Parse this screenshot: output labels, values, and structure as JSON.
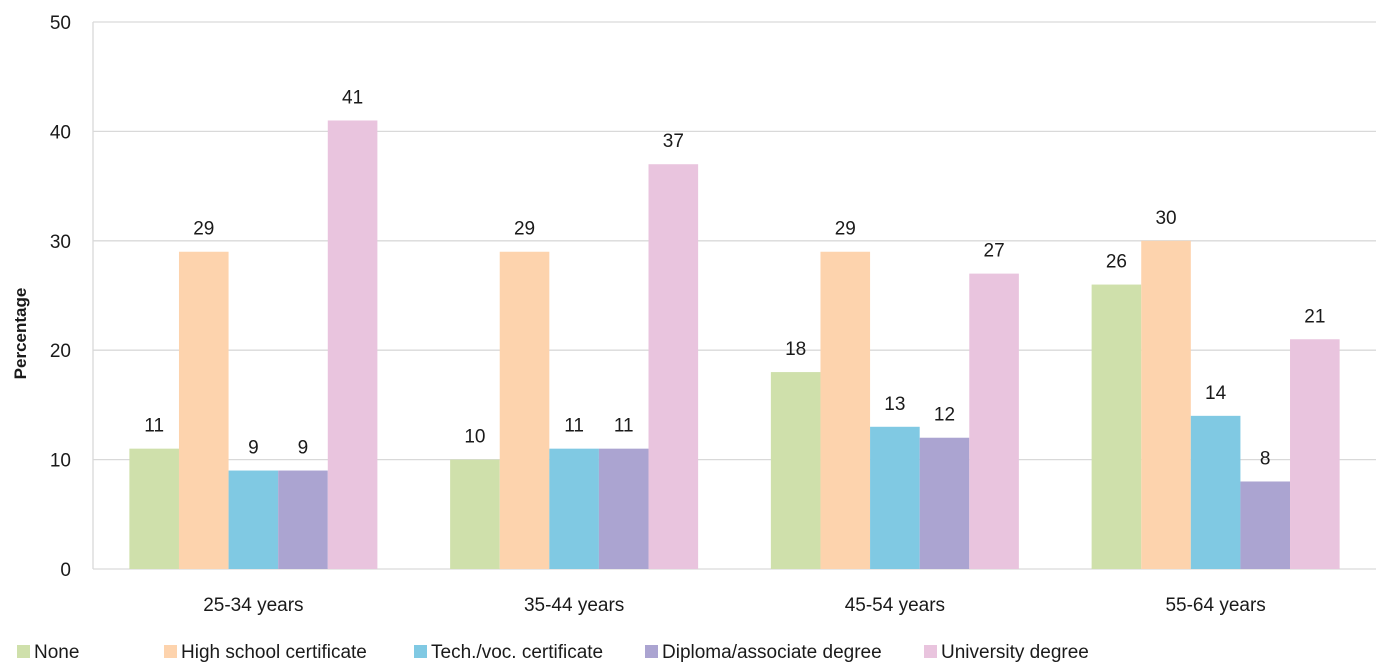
{
  "chart_data": {
    "type": "bar",
    "title": "",
    "xlabel": "",
    "ylabel": "Percentage",
    "ylim": [
      0,
      50
    ],
    "yticks": [
      0,
      10,
      20,
      30,
      40,
      50
    ],
    "grid": true,
    "legend_position": "bottom",
    "categories": [
      "25-34 years",
      "35-44 years",
      "45-54 years",
      "55-64 years"
    ],
    "series": [
      {
        "name": "None",
        "color": "#cfe0ab",
        "values": [
          11,
          10,
          18,
          26
        ]
      },
      {
        "name": "High school certificate",
        "color": "#fdd3ad",
        "values": [
          29,
          29,
          29,
          30
        ]
      },
      {
        "name": "Tech./voc. certificate",
        "color": "#80c9e3",
        "values": [
          9,
          11,
          13,
          14
        ]
      },
      {
        "name": "Diploma/associate degree",
        "color": "#aba4d1",
        "values": [
          9,
          11,
          12,
          8
        ]
      },
      {
        "name": "University degree",
        "color": "#e9c4de",
        "values": [
          41,
          37,
          27,
          21
        ]
      }
    ]
  }
}
